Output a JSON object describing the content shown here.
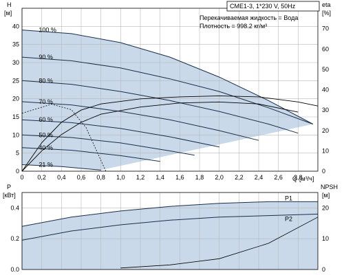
{
  "chart_data": [
    {
      "type": "line",
      "title": "CME1-3, 1*230 V, 50Hz",
      "annotations": [
        "Перекачиваемая жидкость = Вода",
        "Плотность = 998.2 кг/м³"
      ],
      "ylabel": [
        "H",
        "[м]"
      ],
      "y2label": [
        "eta",
        "[%]"
      ],
      "xlabel": [
        "Q",
        "[м³/ч]"
      ],
      "xlim": [
        0,
        3.0
      ],
      "ylim": [
        0,
        45
      ],
      "y2lim": [
        0,
        80
      ],
      "xticks": [
        "0",
        "0,2",
        "0,4",
        "0,6",
        "0,8",
        "1,0",
        "1,2",
        "1,4",
        "1,6",
        "1,8",
        "2,0",
        "2,2",
        "2,4",
        "2,6",
        "2,8"
      ],
      "yticks": [
        "0",
        "5",
        "10",
        "15",
        "20",
        "25",
        "30",
        "35",
        "40"
      ],
      "y2ticks": [
        "0",
        "10",
        "20",
        "30",
        "40",
        "50",
        "60",
        "70"
      ],
      "series": [
        {
          "name": "100 %",
          "x": [
            0,
            0.5,
            1.0,
            1.5,
            2.0,
            2.5,
            2.95
          ],
          "y": [
            39,
            38,
            35.5,
            31.5,
            26,
            19.5,
            13
          ]
        },
        {
          "name": "90 %",
          "x": [
            0,
            0.5,
            1.0,
            1.5,
            2.0,
            2.5,
            2.95
          ],
          "y": [
            31.5,
            30.5,
            28.5,
            25.5,
            22,
            17.5,
            13
          ]
        },
        {
          "name": "80 %",
          "x": [
            0,
            0.5,
            1.0,
            1.5,
            2.0,
            2.5,
            2.8
          ],
          "y": [
            25,
            24,
            22,
            19.5,
            16.5,
            13,
            10.5
          ]
        },
        {
          "name": "70 %",
          "x": [
            0,
            0.5,
            1.0,
            1.5,
            2.0,
            2.4
          ],
          "y": [
            19.2,
            18.3,
            16.5,
            14.2,
            11.2,
            8.5
          ]
        },
        {
          "name": "60 %",
          "x": [
            0,
            0.5,
            1.0,
            1.5,
            2.0
          ],
          "y": [
            14.2,
            13.4,
            11.8,
            9.5,
            6.7
          ]
        },
        {
          "name": "50 %",
          "x": [
            0,
            0.5,
            1.0,
            1.5,
            1.75
          ],
          "y": [
            10,
            9.3,
            7.8,
            5.6,
            4.4
          ]
        },
        {
          "name": "40 %",
          "x": [
            0,
            0.5,
            1.0,
            1.4
          ],
          "y": [
            6.5,
            5.8,
            4.3,
            2.7
          ]
        },
        {
          "name": "21 %",
          "x": [
            0,
            0.4,
            0.8
          ],
          "y": [
            1.8,
            1.3,
            0.3
          ]
        }
      ],
      "eta_series": [
        {
          "x": [
            0,
            0.2,
            0.4,
            0.6,
            0.8,
            1.2,
            1.6,
            2.0,
            2.4,
            2.8,
            3.0
          ],
          "y": [
            0,
            14,
            24,
            30,
            33,
            35.5,
            36.5,
            37,
            36.5,
            34,
            32
          ]
        },
        {
          "x": [
            0,
            0.2,
            0.4,
            0.6,
            0.8,
            1.2,
            1.6,
            2.0,
            2.4,
            2.8
          ],
          "y": [
            0,
            10,
            18,
            24,
            28,
            31.5,
            33.5,
            34,
            33,
            29
          ]
        }
      ],
      "npsh_dashed": {
        "x": [
          0,
          0.3,
          0.5,
          0.65,
          0.75,
          0.85
        ],
        "y": [
          16,
          18.5,
          17,
          12,
          6,
          0
        ]
      }
    },
    {
      "type": "line",
      "ylabel": [
        "P",
        "[кВт]"
      ],
      "y2label": [
        "NPSH",
        "[м]"
      ],
      "xlim": [
        0,
        3.0
      ],
      "ylim": [
        0,
        0.5
      ],
      "y2lim": [
        0,
        25
      ],
      "yticks": [
        "0.0",
        "0.2",
        "0.4"
      ],
      "y2ticks": [
        "0",
        "10",
        "20"
      ],
      "series": [
        {
          "name": "P1",
          "x": [
            0,
            0.5,
            1.0,
            1.5,
            2.0,
            2.5,
            3.0
          ],
          "y": [
            0.28,
            0.34,
            0.38,
            0.41,
            0.43,
            0.44,
            0.44
          ]
        },
        {
          "name": "P2",
          "x": [
            0,
            0.5,
            1.0,
            1.5,
            2.0,
            2.5,
            3.0
          ],
          "y": [
            0.19,
            0.25,
            0.29,
            0.32,
            0.34,
            0.35,
            0.36
          ]
        }
      ],
      "npsh": {
        "x": [
          1.0,
          1.5,
          2.0,
          2.5,
          3.0
        ],
        "y": [
          0.5,
          1.5,
          3.5,
          8.5,
          17
        ]
      }
    }
  ]
}
